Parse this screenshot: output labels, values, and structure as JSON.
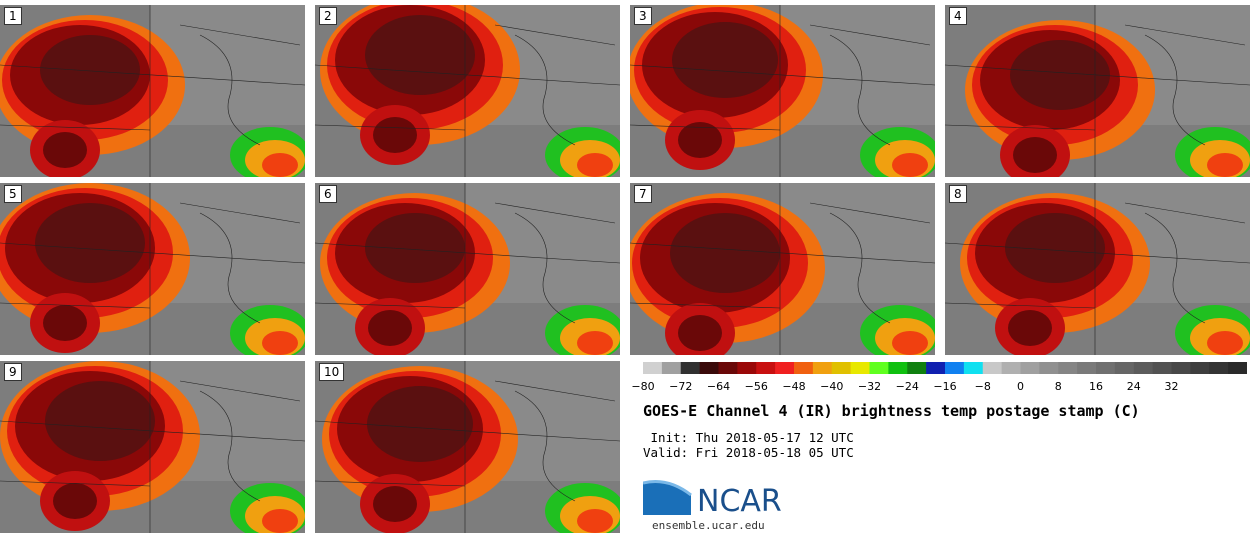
{
  "panels": [
    {
      "label": "1"
    },
    {
      "label": "2"
    },
    {
      "label": "3"
    },
    {
      "label": "4"
    },
    {
      "label": "5"
    },
    {
      "label": "6"
    },
    {
      "label": "7"
    },
    {
      "label": "8"
    },
    {
      "label": "9"
    },
    {
      "label": "10"
    }
  ],
  "colorbar": {
    "colors": [
      "#d0d0d0",
      "#a0a0a0",
      "#303030",
      "#3a0a0a",
      "#6a0808",
      "#9a0808",
      "#c81010",
      "#f02020",
      "#f06010",
      "#f0a010",
      "#e0c000",
      "#e8e800",
      "#60ff20",
      "#10c010",
      "#108010",
      "#1020b0",
      "#1080f0",
      "#10e0f0",
      "#c8c8c8",
      "#b0b0b0",
      "#a0a0a0",
      "#909090",
      "#858585",
      "#7a7a7a",
      "#707070",
      "#666666",
      "#5c5c5c",
      "#525252",
      "#484848",
      "#3e3e3e",
      "#343434",
      "#2a2a2a"
    ],
    "ticks": [
      "−80",
      "−72",
      "−64",
      "−56",
      "−48",
      "−40",
      "−32",
      "−24",
      "−16",
      "−8",
      "0",
      "8",
      "16",
      "24",
      "32"
    ]
  },
  "title": "GOES-E Channel 4 (IR) brightness temp postage stamp (C)",
  "init": " Init: Thu 2018-05-17 12 UTC",
  "valid": "Valid: Fri 2018-05-18 05 UTC",
  "logo_text": "NCAR",
  "site": "ensemble.ucar.edu"
}
